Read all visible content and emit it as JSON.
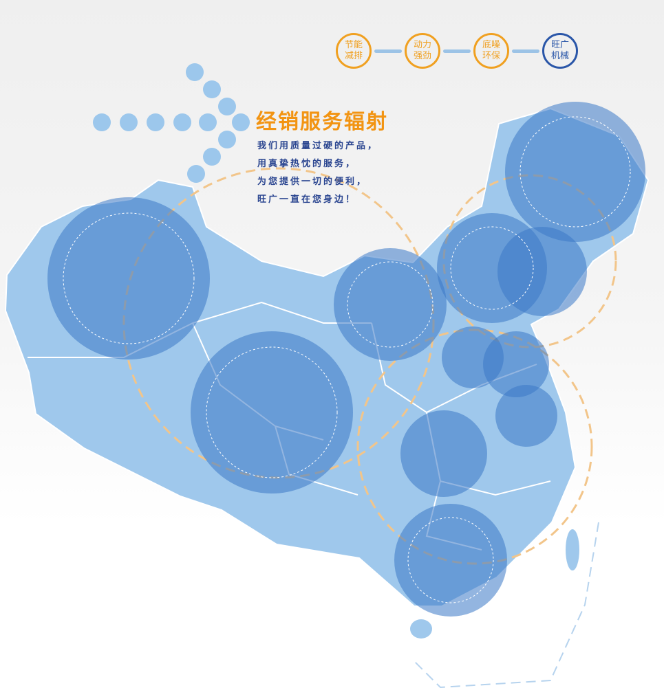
{
  "badges": [
    {
      "line1": "节能",
      "line2": "减排",
      "color": "#f0a020"
    },
    {
      "line1": "动力",
      "line2": "强劲",
      "color": "#f0a020"
    },
    {
      "line1": "底噪",
      "line2": "环保",
      "color": "#f0a020"
    },
    {
      "line1": "旺广",
      "line2": "机械",
      "color": "#2a56a8"
    }
  ],
  "title": "经销服务辐射",
  "slogan": [
    "我们用质量过硬的产品，",
    "用真挚热忱的服务，",
    "为您提供一切的便利，",
    "旺广一直在您身边！"
  ],
  "colors": {
    "map": "#9fc8ec",
    "circle": "#4a86cc",
    "accent": "#f29412",
    "text": "#2a4590"
  }
}
